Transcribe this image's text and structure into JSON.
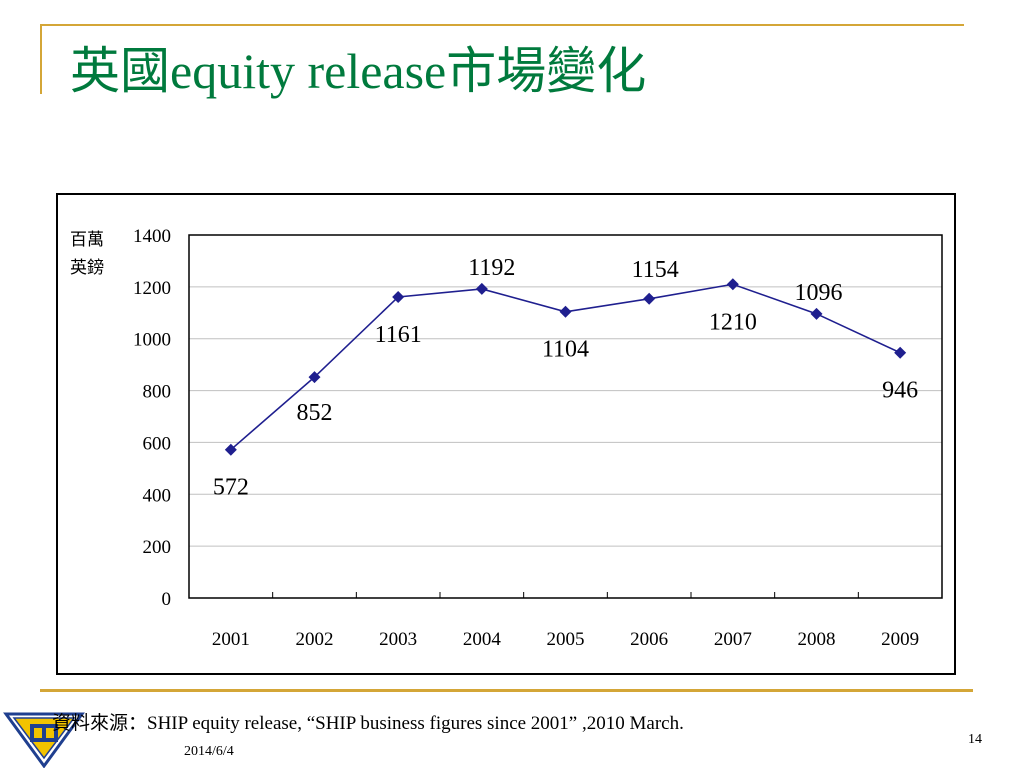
{
  "slide": {
    "title": "英國equity release市場變化",
    "source": "資料來源：SHIP equity release, “SHIP business figures since 2001” ,2010 March.",
    "date": "2014/6/4",
    "page_number": "14"
  },
  "colors": {
    "title": "#007a3d",
    "rule": "#d4a637",
    "series": "#1f1f8f",
    "grid": "#c0c0c0"
  },
  "chart_data": {
    "type": "line",
    "title": "",
    "ylabel_lines": [
      "百萬",
      "英鎊"
    ],
    "xlabel": "",
    "x": [
      "2001",
      "2002",
      "2003",
      "2004",
      "2005",
      "2006",
      "2007",
      "2008",
      "2009"
    ],
    "series": [
      {
        "values": [
          572,
          852,
          1161,
          1192,
          1104,
          1154,
          1210,
          1096,
          946
        ],
        "marker": "diamond"
      }
    ],
    "yticks": [
      "0",
      "200",
      "400",
      "600",
      "800",
      "1000",
      "1200",
      "1400"
    ],
    "ylim": [
      0,
      1400
    ],
    "grid": true,
    "legend": "none"
  }
}
